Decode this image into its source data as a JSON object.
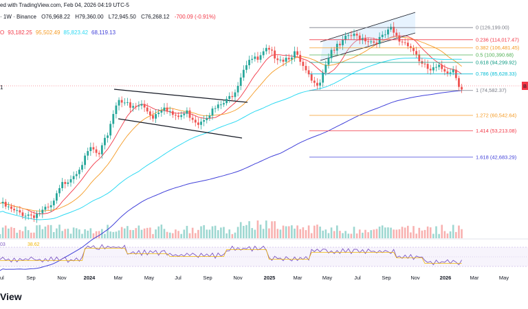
{
  "header": {
    "line1": "ed with TradingView.com, Feb 04, 2026 04:19 UTC-5",
    "symbol": "· 1W · Binance",
    "open": "O76,968.22",
    "high": "H79,360.00",
    "low": "L72,945.50",
    "close": "C76,268.12",
    "change": "-700.09 (-0.91%)",
    "ma_values": [
      {
        "value": "O",
        "color": "#f23645"
      },
      {
        "value": "93,182.25",
        "color": "#f23645"
      },
      {
        "value": "95,502.49",
        "color": "#f59a23"
      },
      {
        "value": "85,823.42",
        "color": "#2bd9f2"
      },
      {
        "value": "68,119.13",
        "color": "#3f3fd9"
      }
    ],
    "sub": "1"
  },
  "rsi": {
    "label_a": "03",
    "label_b": "38.62"
  },
  "footer": {
    "logo": "View"
  },
  "price_tag": "B",
  "chart_data": {
    "type": "candlestick",
    "x_ticks": [
      "ul",
      "Sep",
      "Nov",
      "2024",
      "Mar",
      "May",
      "Jul",
      "Sep",
      "Nov",
      "2025",
      "Mar",
      "May",
      "Jul",
      "Sep",
      "Nov",
      "2026",
      "Mar",
      "May"
    ],
    "x_ticks_bold": [
      "2024",
      "2025",
      "2026"
    ],
    "fib_levels": [
      {
        "ratio": "0",
        "price": "126,199.00",
        "value": 126199,
        "color": "#787b86"
      },
      {
        "ratio": "0.236",
        "price": "114,017.47",
        "value": 114017.47,
        "color": "#f23645"
      },
      {
        "ratio": "0.382",
        "price": "106,481.45",
        "value": 106481.45,
        "color": "#f59a23"
      },
      {
        "ratio": "0.5",
        "price": "100,390.68",
        "value": 100390.68,
        "color": "#4caf50"
      },
      {
        "ratio": "0.618",
        "price": "94,299.92",
        "value": 94299.92,
        "color": "#089981"
      },
      {
        "ratio": "0.786",
        "price": "85,628.33",
        "value": 85628.33,
        "color": "#00bcd4"
      },
      {
        "ratio": "1",
        "price": "74,582.37",
        "value": 74582.37,
        "color": "#787b86"
      },
      {
        "ratio": "1.272",
        "price": "60,542.64",
        "value": 60542.64,
        "color": "#f59a23"
      },
      {
        "ratio": "1.414",
        "price": "53,213.08",
        "value": 53213.08,
        "color": "#f23645"
      },
      {
        "ratio": "1.618",
        "price": "42,683.29",
        "value": 42683.29,
        "color": "#3f3fd9"
      }
    ]
  }
}
